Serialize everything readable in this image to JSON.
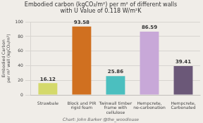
{
  "chart_data": {
    "type": "bar",
    "title": "Embodied carbon (kgCO₂/m²) per m² of different walls with U Value of 0.118 W/m²K",
    "y_label": "Embodied Carbon\nper m² wall (kgCO₂/m²)",
    "footer": "Chart: John Barker @the_woodlouse",
    "categories": [
      "Strawbale",
      "Block and PIR rigid foam",
      "Twinwall timber frame with\ncellulose",
      "Hempcrete, no-carbonation",
      "Hempcrete, Carbonated"
    ],
    "values": [
      16.12,
      93.58,
      25.86,
      86.59,
      39.41
    ],
    "colors": [
      "#d4d96b",
      "#d07020",
      "#4bbfbf",
      "#c8a8d8",
      "#6b5878"
    ],
    "ylim": [
      0,
      100
    ],
    "yticks": [
      0,
      20,
      40,
      60,
      80,
      100
    ],
    "grid": true,
    "data_labels": true
  }
}
